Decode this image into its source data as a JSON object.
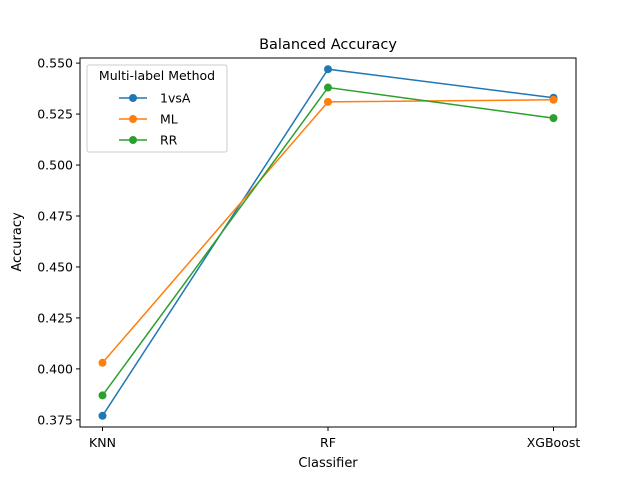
{
  "chart_data": {
    "type": "line",
    "title": "Balanced Accuracy",
    "xlabel": "Classifier",
    "ylabel": "Accuracy",
    "categories": [
      "KNN",
      "RF",
      "XGBoost"
    ],
    "yticks": [
      0.375,
      0.4,
      0.425,
      0.45,
      0.475,
      0.5,
      0.525,
      0.55
    ],
    "ytick_labels": [
      "0.375",
      "0.400",
      "0.425",
      "0.450",
      "0.475",
      "0.500",
      "0.525",
      "0.550"
    ],
    "ylim": [
      0.3715,
      0.5525
    ],
    "legend": {
      "title": "Multi-label Method",
      "placement": "upper-left"
    },
    "grid": false,
    "series": [
      {
        "name": "1vsA",
        "color": "#1f77b4",
        "values": [
          0.377,
          0.547,
          0.533
        ]
      },
      {
        "name": "ML",
        "color": "#ff7f0e",
        "values": [
          0.403,
          0.531,
          0.532
        ]
      },
      {
        "name": "RR",
        "color": "#2ca02c",
        "values": [
          0.387,
          0.538,
          0.523
        ]
      }
    ]
  }
}
